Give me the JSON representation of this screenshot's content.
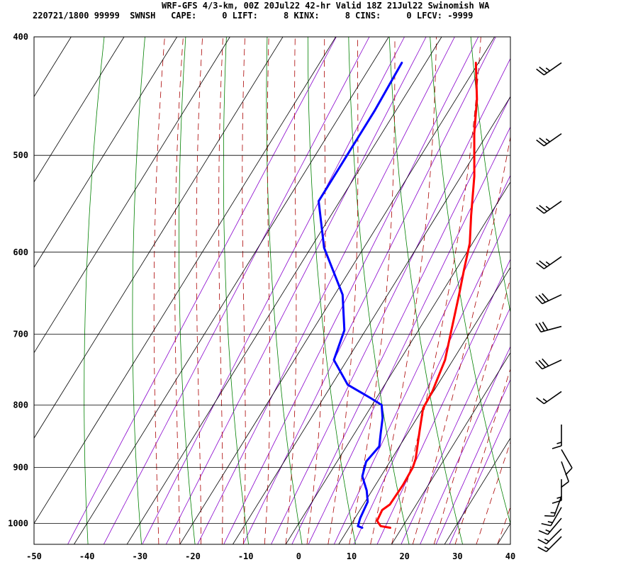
{
  "header": {
    "line1": "WRF-GFS 4/3-km, 00Z 20Jul22 42-hr Valid 18Z 21Jul22 Swinomish WA",
    "line2": "220721/1800 99999  SWNSH   CAPE:     0 LIFT:     8 KINX:     8 CINS:     0 LFCV: -9999"
  },
  "colors": {
    "temperature": "#ff0000",
    "dewpoint": "#0000ff",
    "isotherm": "#000000",
    "isobar": "#000000",
    "dry_adiabat": "#008000",
    "moist_adiabat": "#aa0000",
    "mixing_ratio": "#8800cc",
    "wind": "#000000"
  },
  "chart_data": {
    "type": "line",
    "chart_kind": "skew-T log-P sounding",
    "x_axis": {
      "range": [
        -50,
        40
      ],
      "ticks": [
        -50,
        -40,
        -30,
        -20,
        -10,
        0,
        10,
        20,
        30,
        40
      ]
    },
    "y_axis": {
      "scale": "log",
      "range": [
        1040,
        400
      ],
      "ticks": [
        400,
        500,
        600,
        700,
        800,
        900,
        1000
      ]
    },
    "grid": true,
    "series": [
      {
        "key": "temperature",
        "points": [
          {
            "p": 1008,
            "t": 17.8
          },
          {
            "p": 1005,
            "t": 15.8
          },
          {
            "p": 995,
            "t": 14.5
          },
          {
            "p": 975,
            "t": 14.2
          },
          {
            "p": 965,
            "t": 15.0
          },
          {
            "p": 930,
            "t": 15.2
          },
          {
            "p": 900,
            "t": 15.0
          },
          {
            "p": 885,
            "t": 14.5
          },
          {
            "p": 840,
            "t": 12.0
          },
          {
            "p": 805,
            "t": 10.0
          },
          {
            "p": 780,
            "t": 9.8
          },
          {
            "p": 735,
            "t": 8.5
          },
          {
            "p": 700,
            "t": 6.5
          },
          {
            "p": 650,
            "t": 3.5
          },
          {
            "p": 620,
            "t": 1.5
          },
          {
            "p": 590,
            "t": -0.5
          },
          {
            "p": 560,
            "t": -3.5
          },
          {
            "p": 520,
            "t": -7.5
          },
          {
            "p": 480,
            "t": -12.5
          },
          {
            "p": 450,
            "t": -16.0
          },
          {
            "p": 420,
            "t": -20.5
          }
        ]
      },
      {
        "key": "dewpoint",
        "points": [
          {
            "p": 1008,
            "t": 12.5
          },
          {
            "p": 1005,
            "t": 11.5
          },
          {
            "p": 990,
            "t": 11.0
          },
          {
            "p": 960,
            "t": 10.5
          },
          {
            "p": 940,
            "t": 9.0
          },
          {
            "p": 915,
            "t": 6.5
          },
          {
            "p": 890,
            "t": 5.5
          },
          {
            "p": 865,
            "t": 6.2
          },
          {
            "p": 845,
            "t": 5.0
          },
          {
            "p": 820,
            "t": 3.5
          },
          {
            "p": 800,
            "t": 1.8
          },
          {
            "p": 790,
            "t": -1.0
          },
          {
            "p": 770,
            "t": -7.0
          },
          {
            "p": 735,
            "t": -12.5
          },
          {
            "p": 695,
            "t": -14.0
          },
          {
            "p": 650,
            "t": -18.5
          },
          {
            "p": 595,
            "t": -27.5
          },
          {
            "p": 545,
            "t": -34.0
          },
          {
            "p": 500,
            "t": -34.0
          },
          {
            "p": 460,
            "t": -34.0
          },
          {
            "p": 420,
            "t": -34.5
          }
        ]
      }
    ],
    "wind_barbs": [
      {
        "p": 420,
        "dir": 235,
        "kt": 25
      },
      {
        "p": 480,
        "dir": 235,
        "kt": 25
      },
      {
        "p": 545,
        "dir": 235,
        "kt": 25
      },
      {
        "p": 605,
        "dir": 235,
        "kt": 25
      },
      {
        "p": 650,
        "dir": 245,
        "kt": 30
      },
      {
        "p": 690,
        "dir": 255,
        "kt": 30
      },
      {
        "p": 735,
        "dir": 245,
        "kt": 30
      },
      {
        "p": 780,
        "dir": 235,
        "kt": 15
      },
      {
        "p": 830,
        "dir": 180,
        "kt": 15
      },
      {
        "p": 870,
        "dir": 150,
        "kt": 10
      },
      {
        "p": 890,
        "dir": 160,
        "kt": 10
      },
      {
        "p": 920,
        "dir": 180,
        "kt": 15
      },
      {
        "p": 950,
        "dir": 200,
        "kt": 15
      },
      {
        "p": 970,
        "dir": 210,
        "kt": 15
      },
      {
        "p": 990,
        "dir": 220,
        "kt": 15
      },
      {
        "p": 1010,
        "dir": 225,
        "kt": 15
      },
      {
        "p": 1025,
        "dir": 225,
        "kt": 15
      }
    ],
    "dry_adiabats_theta_c": [
      -40,
      -30,
      -20,
      -10,
      0,
      10,
      20,
      30,
      40,
      50,
      60,
      70,
      80,
      90,
      100
    ],
    "moist_adiabats_c": [
      -24,
      -20,
      -16,
      -12,
      -8,
      -4,
      0,
      4,
      8,
      12,
      16,
      20,
      24,
      28,
      32,
      36,
      40
    ],
    "mixing_ratio_lines_gkg": [
      0.1,
      0.2,
      0.4,
      0.6,
      1,
      1.5,
      2,
      3,
      4,
      5,
      7,
      9,
      12,
      16,
      20,
      24,
      28
    ]
  }
}
